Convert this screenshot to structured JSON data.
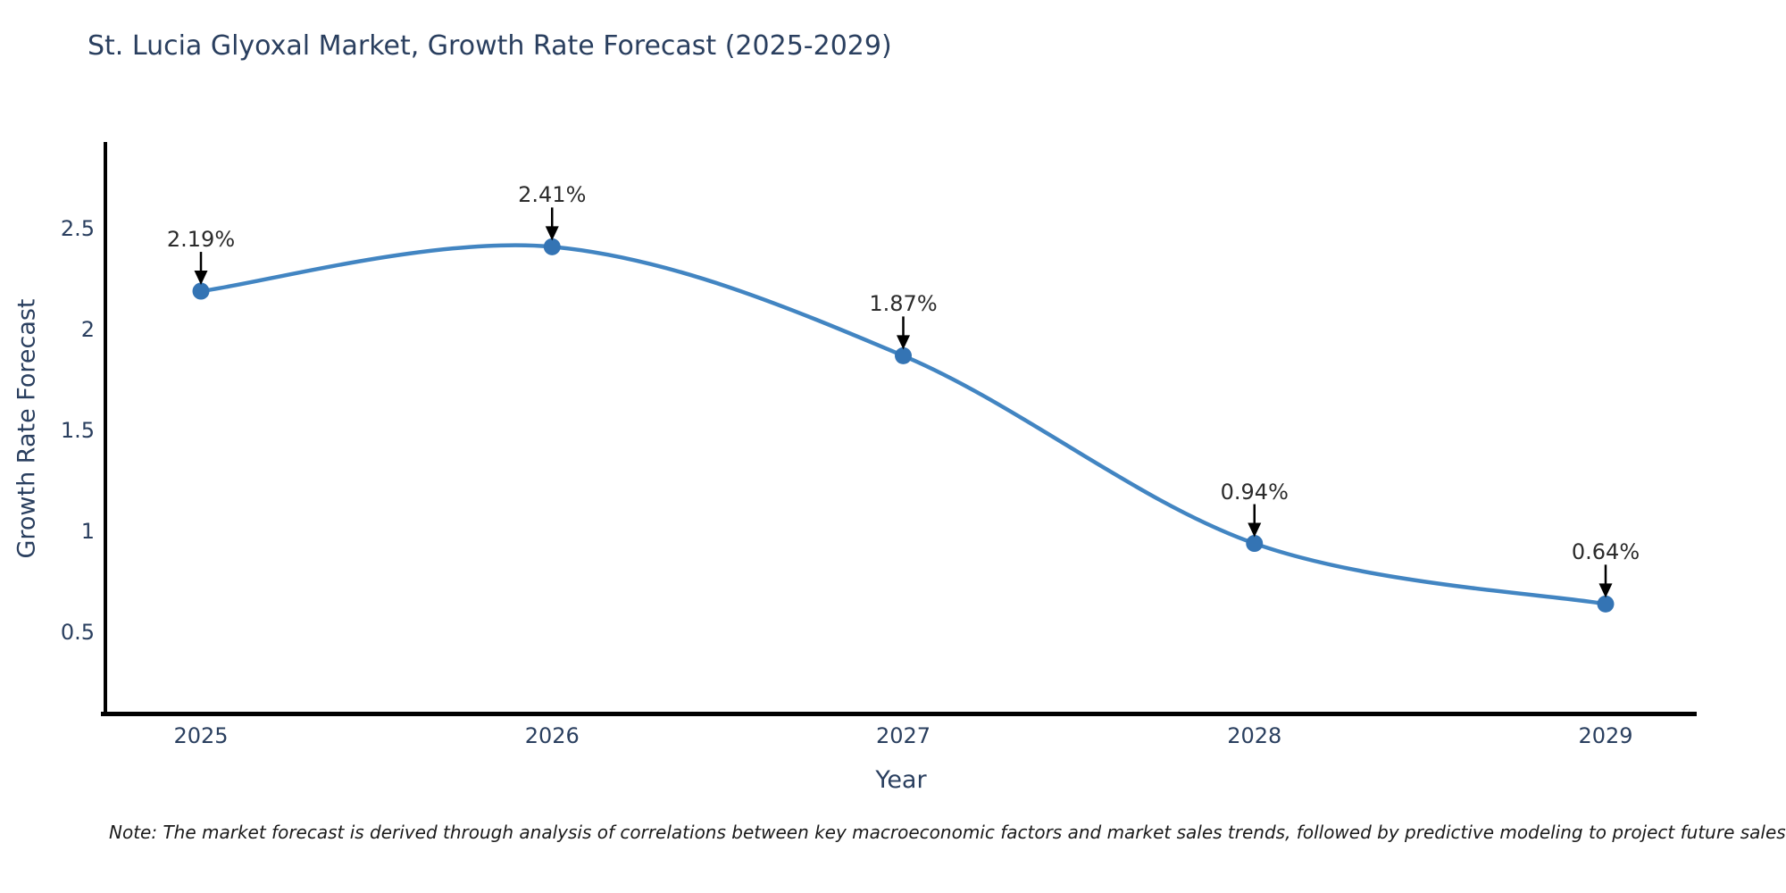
{
  "title": "St. Lucia Glyoxal Market, Growth Rate Forecast (2025-2029)",
  "note": "Note: The market forecast is derived through analysis of correlations between key macroeconomic factors and market sales trends, followed by predictive modeling to project future sales",
  "chart_data": {
    "type": "line",
    "title": "St. Lucia Glyoxal Market, Growth Rate Forecast (2025-2029)",
    "x": [
      "2025",
      "2026",
      "2027",
      "2028",
      "2029"
    ],
    "series": [
      {
        "name": "Growth Rate Forecast",
        "values": [
          2.19,
          2.41,
          1.87,
          0.94,
          0.64
        ]
      }
    ],
    "point_labels": [
      "2.19%",
      "2.41%",
      "1.87%",
      "0.94%",
      "0.64%"
    ],
    "xlabel": "Year",
    "ylabel": "Growth Rate Forecast",
    "ytick_labels": [
      "2.5",
      "2",
      "1.5",
      "1",
      "0.5"
    ],
    "ytick_values": [
      2.5,
      2.0,
      1.5,
      1.0,
      0.5
    ],
    "ylim": [
      0.09,
      2.92
    ],
    "grid": false,
    "legend_position": "none",
    "line_style": "smooth-spline",
    "marker_style": "filled-circle",
    "annotation_style": "label-with-down-arrow",
    "colors": {
      "line": "#4285c2",
      "marker": "#3474b4",
      "arrow": "#000000",
      "axis_line": "#000000",
      "title_text": "#2a3f5f",
      "tick_text": "#2a3f5f",
      "annotation_text": "#2b2b2b",
      "note_text": "#1a1a1a",
      "background": "#ffffff"
    }
  }
}
